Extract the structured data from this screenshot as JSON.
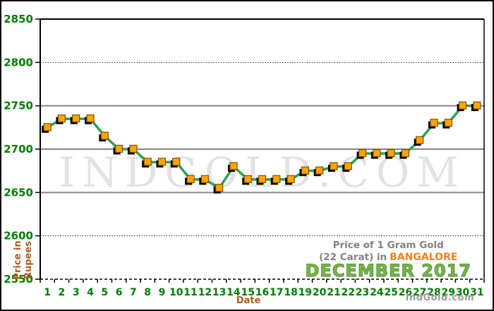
{
  "watermark": "INDGOLD.COM",
  "credit": "IndGold.com",
  "title": {
    "line1": "Price of 1 Gram Gold",
    "line2_prefix": "(22 Carat) in",
    "line2_highlight": "BANGALORE",
    "line3": "DECEMBER 2017"
  },
  "axes": {
    "y_title_line1": "Price in",
    "y_title_line2": "Rupees",
    "x_title": "Date"
  },
  "colors": {
    "axis_label_green": "#007c00",
    "axis_title_brown": "#b25a1a",
    "line_green": "#2fa053",
    "marker_orange": "#ffa500",
    "marker_border": "#7a5200",
    "marker_shadow": "#000000",
    "grid_solid": "#868686",
    "grid_dotted": "#2b2b2b",
    "frame_black": "#000000",
    "title_gray": "#828282",
    "city_orange": "#f6821f",
    "month_green": "#7ab648"
  },
  "chart_data": {
    "type": "line",
    "title": "Price of 1 Gram Gold (22 Carat) in Bangalore - December 2017",
    "xlabel": "Date",
    "ylabel": "Price in Rupees",
    "x": [
      1,
      2,
      3,
      4,
      5,
      6,
      7,
      8,
      9,
      10,
      11,
      12,
      13,
      14,
      15,
      16,
      17,
      18,
      19,
      20,
      21,
      22,
      23,
      24,
      25,
      26,
      27,
      28,
      29,
      30,
      31
    ],
    "values": [
      2725,
      2735,
      2735,
      2735,
      2715,
      2700,
      2700,
      2685,
      2685,
      2685,
      2665,
      2665,
      2655,
      2680,
      2665,
      2665,
      2665,
      2665,
      2675,
      2675,
      2680,
      2680,
      2695,
      2695,
      2695,
      2695,
      2710,
      2730,
      2730,
      2750,
      2750
    ],
    "ylim": [
      2550,
      2850
    ],
    "ytick_interval": 50,
    "grid": true,
    "legend": "none",
    "solid_gridlines": [
      2650,
      2700,
      2750
    ],
    "dotted_gridlines": [
      2600,
      2800
    ]
  }
}
